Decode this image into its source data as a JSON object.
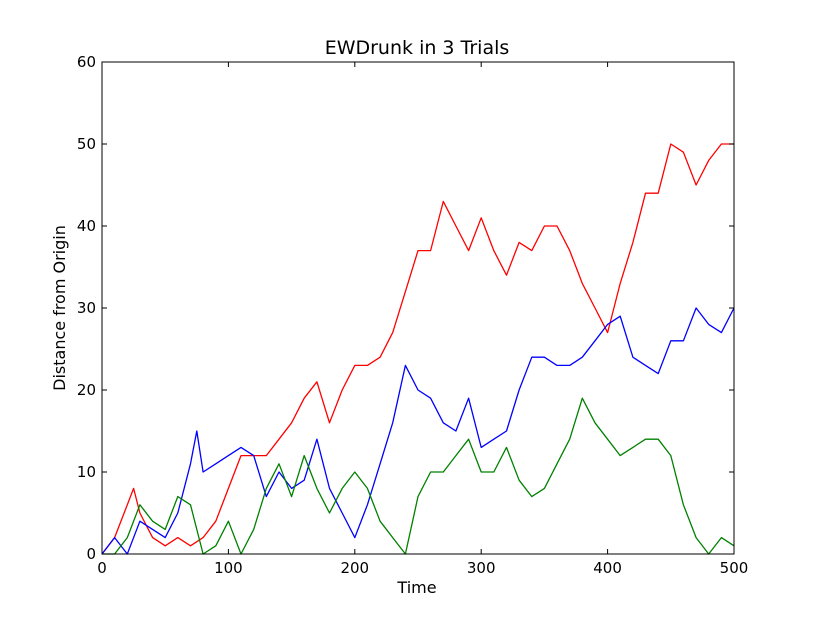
{
  "chart_data": {
    "type": "line",
    "title": "EWDrunk in 3 Trials",
    "xlabel": "Time",
    "ylabel": "Distance from Origin",
    "xlim": [
      0,
      500
    ],
    "ylim": [
      0,
      60
    ],
    "xticks": [
      "0",
      "100",
      "200",
      "300",
      "400",
      "500"
    ],
    "yticks": [
      "0",
      "10",
      "20",
      "30",
      "40",
      "50",
      "60"
    ],
    "grid": false,
    "legend": "none",
    "series": [
      {
        "color": "#ff0000",
        "x": [
          0,
          10,
          20,
          25,
          30,
          40,
          50,
          60,
          70,
          80,
          90,
          100,
          110,
          120,
          130,
          140,
          150,
          160,
          170,
          180,
          190,
          200,
          210,
          220,
          230,
          240,
          250,
          260,
          270,
          280,
          290,
          300,
          310,
          320,
          330,
          340,
          350,
          360,
          370,
          380,
          390,
          400,
          410,
          420,
          430,
          440,
          450,
          460,
          470,
          480,
          490,
          500
        ],
        "values": [
          0,
          2,
          6,
          8,
          5,
          2,
          1,
          2,
          1,
          2,
          4,
          8,
          12,
          12,
          12,
          14,
          16,
          19,
          21,
          16,
          20,
          23,
          23,
          24,
          27,
          32,
          37,
          37,
          43,
          40,
          37,
          41,
          37,
          34,
          38,
          37,
          40,
          40,
          37,
          33,
          30,
          27,
          33,
          38,
          44,
          44,
          50,
          49,
          45,
          48,
          50,
          50
        ]
      },
      {
        "color": "#0000ff",
        "x": [
          0,
          10,
          20,
          30,
          40,
          50,
          60,
          70,
          75,
          80,
          90,
          100,
          110,
          120,
          130,
          140,
          150,
          160,
          170,
          180,
          190,
          200,
          210,
          220,
          230,
          240,
          250,
          260,
          270,
          280,
          290,
          300,
          310,
          320,
          330,
          340,
          350,
          360,
          370,
          380,
          390,
          400,
          410,
          420,
          430,
          440,
          450,
          460,
          470,
          480,
          490,
          500
        ],
        "values": [
          0,
          2,
          0,
          4,
          3,
          2,
          5,
          11,
          15,
          10,
          11,
          12,
          13,
          12,
          7,
          10,
          8,
          9,
          14,
          8,
          5,
          2,
          6,
          11,
          16,
          23,
          20,
          19,
          16,
          15,
          19,
          13,
          14,
          15,
          20,
          24,
          24,
          23,
          23,
          24,
          26,
          28,
          29,
          24,
          23,
          22,
          26,
          26,
          30,
          28,
          27,
          30
        ]
      },
      {
        "color": "#008000",
        "x": [
          0,
          10,
          20,
          30,
          40,
          50,
          60,
          70,
          80,
          90,
          100,
          110,
          120,
          130,
          140,
          150,
          160,
          170,
          180,
          190,
          200,
          210,
          220,
          230,
          240,
          250,
          260,
          270,
          280,
          290,
          300,
          310,
          320,
          330,
          340,
          350,
          360,
          370,
          380,
          390,
          400,
          410,
          420,
          430,
          440,
          450,
          460,
          470,
          480,
          490,
          500
        ],
        "values": [
          0,
          0,
          2,
          6,
          4,
          3,
          7,
          6,
          0,
          1,
          4,
          0,
          3,
          8,
          11,
          7,
          12,
          8,
          5,
          8,
          10,
          8,
          4,
          2,
          0,
          7,
          10,
          10,
          12,
          14,
          10,
          10,
          13,
          9,
          7,
          8,
          11,
          14,
          19,
          16,
          14,
          12,
          13,
          14,
          14,
          12,
          6,
          2,
          0,
          2,
          1
        ]
      }
    ]
  }
}
